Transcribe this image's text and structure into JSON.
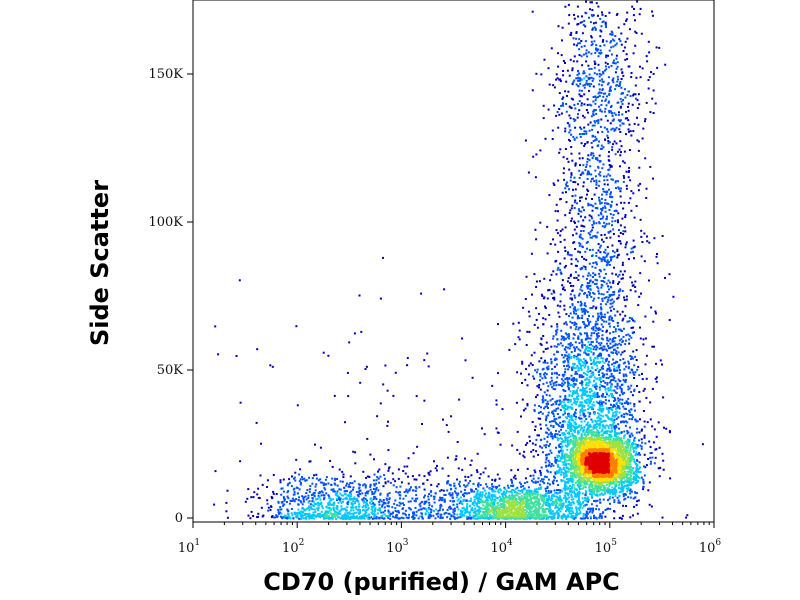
{
  "chart_data": {
    "type": "scatter",
    "title": "",
    "xlabel": "CD70 (purified) / GAM APC",
    "ylabel": "Side Scatter",
    "xscale": "log",
    "xlim": [
      10,
      1000000
    ],
    "ylim": [
      0,
      175000
    ],
    "xticks": [
      {
        "base": "10",
        "exp": "1"
      },
      {
        "base": "10",
        "exp": "2"
      },
      {
        "base": "10",
        "exp": "3"
      },
      {
        "base": "10",
        "exp": "4"
      },
      {
        "base": "10",
        "exp": "5"
      },
      {
        "base": "10",
        "exp": "6"
      }
    ],
    "yticks": [
      {
        "value": 0,
        "label": "0"
      },
      {
        "value": 50000,
        "label": "50K"
      },
      {
        "value": 100000,
        "label": "100K"
      },
      {
        "value": 150000,
        "label": "150K"
      }
    ],
    "density_colormap": [
      "#0000b4",
      "#0050ff",
      "#00c8ff",
      "#40e0a0",
      "#a0e040",
      "#ffe000",
      "#ff8000",
      "#e00000"
    ],
    "populations": [
      {
        "x_center": 80000,
        "y_center": 19000,
        "x_spread_decades": 0.17,
        "y_spread": 5000,
        "points": 2600
      },
      {
        "x_center": 60000,
        "y_center": 38000,
        "x_spread_decades": 0.28,
        "y_spread": 20000,
        "points": 2000
      },
      {
        "x_center": 70000,
        "y_center": 95000,
        "x_spread_decades": 0.22,
        "y_spread": 35000,
        "points": 1100
      },
      {
        "x_center": 12000,
        "y_center": 4000,
        "x_spread_decades": 0.32,
        "y_spread": 4000,
        "points": 1300
      },
      {
        "x_center": 200,
        "y_center": 4000,
        "x_spread_decades": 0.35,
        "y_spread": 5000,
        "points": 700
      },
      {
        "x_center": 1500,
        "y_center": 6000,
        "x_spread_decades": 0.6,
        "y_spread": 6000,
        "points": 500
      },
      {
        "x_center": 1000,
        "y_center": 35000,
        "x_spread_decades": 0.9,
        "y_spread": 25000,
        "points": 120
      },
      {
        "x_center": 80000,
        "y_center": 155000,
        "x_spread_decades": 0.25,
        "y_spread": 18000,
        "points": 500
      }
    ]
  }
}
